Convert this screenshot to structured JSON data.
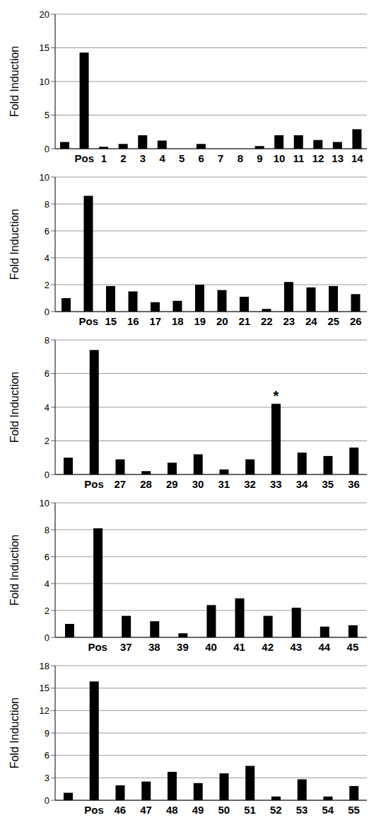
{
  "chart_data": [
    {
      "type": "bar",
      "ylabel": "Fold Induction",
      "categories": [
        null,
        "Pos",
        "1",
        "2",
        "3",
        "4",
        "5",
        "6",
        "7",
        "8",
        "9",
        "10",
        "11",
        "12",
        "13",
        "14"
      ],
      "values": [
        1,
        14.3,
        0.3,
        0.7,
        2,
        1.2,
        0,
        0.7,
        0,
        0,
        0.4,
        2,
        2,
        1.3,
        1,
        2.9
      ],
      "color": "#000000",
      "ylim": [
        0,
        20
      ],
      "yticks": [
        0,
        5,
        10,
        15,
        20
      ],
      "grid": true
    },
    {
      "type": "bar",
      "ylabel": "Fold Induction",
      "categories": [
        null,
        "Pos",
        "15",
        "16",
        "17",
        "18",
        "19",
        "20",
        "21",
        "22",
        "23",
        "24",
        "25",
        "26"
      ],
      "values": [
        1,
        8.6,
        1.9,
        1.5,
        0.7,
        0.8,
        2.0,
        1.6,
        1.1,
        0.2,
        2.2,
        1.8,
        1.9,
        1.3
      ],
      "color": "#000000",
      "ylim": [
        0,
        10
      ],
      "yticks": [
        0,
        2,
        4,
        6,
        8,
        10
      ],
      "grid": true
    },
    {
      "type": "bar",
      "ylabel": "Fold Induction",
      "categories": [
        null,
        "Pos",
        "27",
        "28",
        "29",
        "30",
        "31",
        "32",
        "33",
        "34",
        "35",
        "36"
      ],
      "values": [
        1,
        7.4,
        0.9,
        0.2,
        0.7,
        1.2,
        0.3,
        0.9,
        4.2,
        1.3,
        1.1,
        1.6
      ],
      "color": "#000000",
      "ylim": [
        0,
        8
      ],
      "yticks": [
        0,
        2,
        4,
        6,
        8
      ],
      "grid": true,
      "annotations": [
        {
          "category": "33",
          "text": "*"
        }
      ]
    },
    {
      "type": "bar",
      "ylabel": "Fold Induction",
      "categories": [
        null,
        "Pos",
        "37",
        "38",
        "39",
        "40",
        "41",
        "42",
        "43",
        "44",
        "45"
      ],
      "values": [
        1,
        8.1,
        1.6,
        1.2,
        0.3,
        2.4,
        2.9,
        1.6,
        2.2,
        0.8,
        0.9
      ],
      "color": "#000000",
      "ylim": [
        0,
        10
      ],
      "yticks": [
        0,
        2,
        4,
        6,
        8,
        10
      ],
      "grid": true
    },
    {
      "type": "bar",
      "ylabel": "Fold Induction",
      "categories": [
        null,
        "Pos",
        "46",
        "47",
        "48",
        "49",
        "50",
        "51",
        "52",
        "53",
        "54",
        "55"
      ],
      "values": [
        1,
        15.9,
        2.0,
        2.5,
        3.8,
        2.3,
        3.6,
        4.6,
        0.5,
        2.8,
        0.5,
        1.9
      ],
      "color": "#000000",
      "ylim": [
        0,
        18
      ],
      "yticks": [
        0,
        3,
        6,
        9,
        12,
        15,
        18
      ],
      "grid": true
    }
  ]
}
